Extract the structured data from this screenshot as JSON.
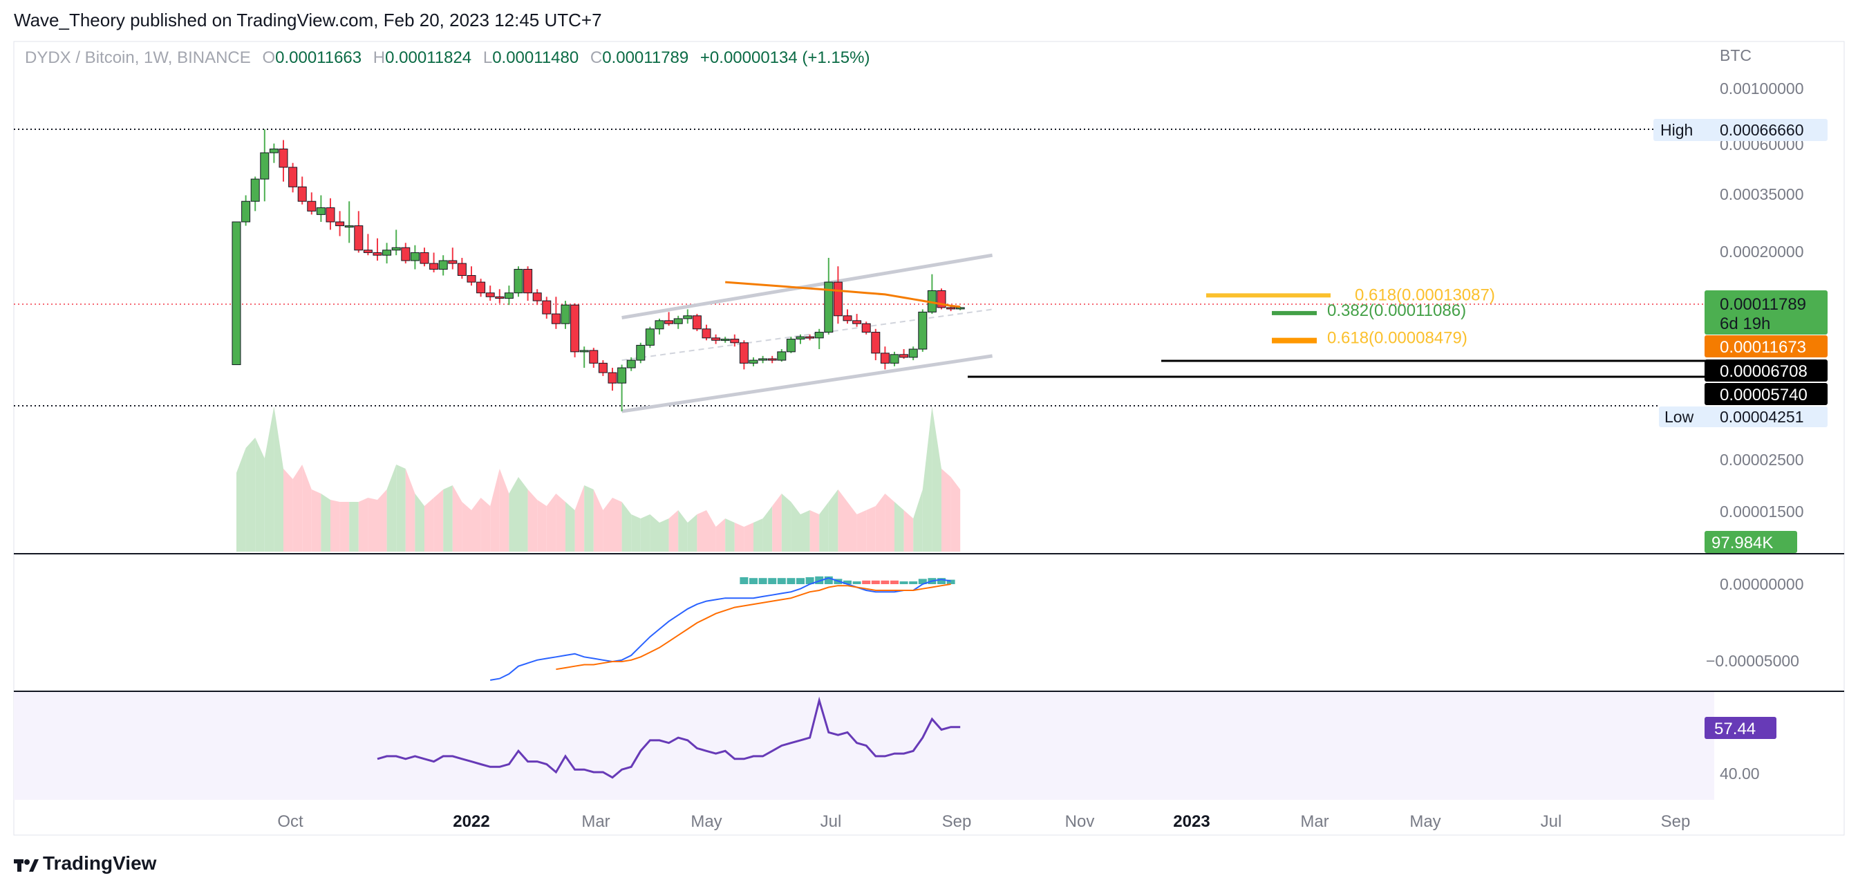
{
  "header": {
    "published": "Wave_Theory published on TradingView.com, Feb 20, 2023 12:45 UTC+7"
  },
  "legend": {
    "symbol": "DYDX / Bitcoin, 1W, BINANCE",
    "o_key": "O",
    "o_val": "0.00011663",
    "h_key": "H",
    "h_val": "0.00011824",
    "l_key": "L",
    "l_val": "0.00011480",
    "c_key": "C",
    "c_val": "0.00011789",
    "change": "+0.00000134 (+1.15%)"
  },
  "footer": {
    "brand": "TradingView",
    "logo_icon": "tradingview-logo-icon"
  },
  "colors": {
    "up": "#4caf50",
    "down": "#f23645",
    "ema": "#f57c00",
    "macd": "#2962ff",
    "signal": "#ff6d00",
    "rsi": "#673ab7",
    "fib_yellow": "#fbc02d",
    "fib_green": "#43a047",
    "vol_up": "#c8e6c9",
    "vol_down": "#ffcdd2"
  },
  "chart_data": [
    {
      "type": "candlestick",
      "title": "",
      "currency": "BTC",
      "scale": "log",
      "ylim": [
        4e-05,
        0.0012
      ],
      "x_ticks": [
        "Oct",
        "2022",
        "Mar",
        "May",
        "Jul",
        "Sep",
        "Nov",
        "2023",
        "Mar",
        "May",
        "Jul",
        "Sep"
      ],
      "y_ticks": [
        "0.00100000",
        "0.00060000",
        "0.00035000",
        "0.00020000",
        "0.00011789",
        "0.00006708",
        "0.00005740",
        "0.00004251"
      ],
      "series": [
        {
          "name": "",
          "candles": [
            [
              6.7e-05,
              0.00027,
              6.7e-05,
              0.00027
            ],
            [
              0.00027,
              0.00035,
              0.00026,
              0.00033
            ],
            [
              0.00033,
              0.00042,
              0.0003,
              0.00041
            ],
            [
              0.00041,
              0.000666,
              0.00033,
              0.00053
            ],
            [
              0.00053,
              0.00058,
              0.00048,
              0.00055
            ],
            [
              0.00055,
              0.0006,
              0.0004,
              0.00046
            ],
            [
              0.00046,
              0.00048,
              0.00036,
              0.00038
            ],
            [
              0.00038,
              0.00042,
              0.00032,
              0.00033
            ],
            [
              0.00033,
              0.00036,
              0.00029,
              0.0003
            ],
            [
              0.00029,
              0.00035,
              0.00027,
              0.00031
            ],
            [
              0.00031,
              0.00034,
              0.00025,
              0.00027
            ],
            [
              0.00027,
              0.0003,
              0.000235,
              0.00026
            ],
            [
              0.00026,
              0.00033,
              0.00022,
              0.00026
            ],
            [
              0.00026,
              0.0003,
              0.0002,
              0.000205
            ],
            [
              0.000205,
              0.00024,
              0.000195,
              0.0002
            ],
            [
              0.0002,
              0.00023,
              0.000185,
              0.000195
            ],
            [
              0.000195,
              0.00022,
              0.00018,
              0.000205
            ],
            [
              0.000205,
              0.00025,
              0.000195,
              0.00021
            ],
            [
              0.00021,
              0.00022,
              0.00018,
              0.000185
            ],
            [
              0.000185,
              0.000215,
              0.00017,
              0.0002
            ],
            [
              0.0002,
              0.00021,
              0.000175,
              0.00018
            ],
            [
              0.00018,
              0.0002,
              0.000165,
              0.00017
            ],
            [
              0.00017,
              0.000195,
              0.00016,
              0.000185
            ],
            [
              0.000185,
              0.00021,
              0.00017,
              0.00018
            ],
            [
              0.00018,
              0.00019,
              0.000155,
              0.00016
            ],
            [
              0.00016,
              0.000175,
              0.000145,
              0.00015
            ],
            [
              0.00015,
              0.000155,
              0.00013,
              0.000135
            ],
            [
              0.000135,
              0.000145,
              0.000125,
              0.00013
            ],
            [
              0.00013,
              0.00014,
              0.000122,
              0.000128
            ],
            [
              0.000128,
              0.000145,
              0.00012,
              0.000135
            ],
            [
              0.000135,
              0.000175,
              0.00013,
              0.00017
            ],
            [
              0.00017,
              0.000175,
              0.000125,
              0.000135
            ],
            [
              0.000135,
              0.00014,
              0.00012,
              0.000125
            ],
            [
              0.000125,
              0.00013,
              0.000105,
              0.00011
            ],
            [
              0.00011,
              0.00013,
              9.5e-05,
              0.0001
            ],
            [
              0.0001,
              0.000125,
              9.5e-05,
              0.00012
            ],
            [
              0.00012,
              0.000122,
              7.2e-05,
              7.6e-05
            ],
            [
              7.6e-05,
              8e-05,
              6.5e-05,
              7.7e-05
            ],
            [
              7.7e-05,
              7.9e-05,
              6.5e-05,
              6.8e-05
            ],
            [
              6.8e-05,
              7e-05,
              6e-05,
              6.2e-05
            ],
            [
              6.2e-05,
              6.5e-05,
              5.2e-05,
              5.6e-05
            ],
            [
              5.6e-05,
              6.7e-05,
              4.25e-05,
              6.5e-05
            ],
            [
              6.5e-05,
              7.2e-05,
              6.3e-05,
              7e-05
            ],
            [
              7e-05,
              8.3e-05,
              6.8e-05,
              8.1e-05
            ],
            [
              8.1e-05,
              9.7e-05,
              7.9e-05,
              9.5e-05
            ],
            [
              9.5e-05,
              0.000105,
              9e-05,
              0.000103
            ],
            [
              0.000103,
              0.000112,
              9.8e-05,
              0.0001
            ],
            [
              0.0001,
              0.000108,
              9.5e-05,
              0.000105
            ],
            [
              0.000105,
              0.000115,
              0.0001,
              0.000108
            ],
            [
              0.000108,
              0.00011,
              9.3e-05,
              9.5e-05
            ],
            [
              9.5e-05,
              9.9e-05,
              8.5e-05,
              8.7e-05
            ],
            [
              8.7e-05,
              9e-05,
              8.2e-05,
              8.5e-05
            ],
            [
              8.5e-05,
              8.8e-05,
              8.3e-05,
              8.6e-05
            ],
            [
              8.6e-05,
              9e-05,
              8e-05,
              8.3e-05
            ],
            [
              8.3e-05,
              8.5e-05,
              6.4e-05,
              6.8e-05
            ],
            [
              6.8e-05,
              7.2e-05,
              6.6e-05,
              7e-05
            ],
            [
              7e-05,
              7.3e-05,
              6.8e-05,
              7.1e-05
            ],
            [
              7.1e-05,
              7.3e-05,
              6.8e-05,
              7e-05
            ],
            [
              7e-05,
              7.8e-05,
              6.9e-05,
              7.6e-05
            ],
            [
              7.6e-05,
              8.8e-05,
              7.5e-05,
              8.6e-05
            ],
            [
              8.6e-05,
              9e-05,
              8.2e-05,
              8.8e-05
            ],
            [
              8.8e-05,
              9e-05,
              8.5e-05,
              8.7e-05
            ],
            [
              8.7e-05,
              9.5e-05,
              7.8e-05,
              9.2e-05
            ],
            [
              9.2e-05,
              0.00019,
              9e-05,
              0.00015
            ],
            [
              0.00015,
              0.000175,
              0.0001,
              0.000108
            ],
            [
              0.000108,
              0.000115,
              0.0001,
              0.000103
            ],
            [
              0.000103,
              0.00011,
              9.7e-05,
              0.0001
            ],
            [
              0.0001,
              0.000102,
              9e-05,
              9.2e-05
            ],
            [
              9.2e-05,
              9.5e-05,
              7e-05,
              7.5e-05
            ],
            [
              7.5e-05,
              8e-05,
              6.4e-05,
              6.8e-05
            ],
            [
              6.8e-05,
              7.6e-05,
              6.6e-05,
              7.4e-05
            ],
            [
              7.4e-05,
              7.8e-05,
              7.1e-05,
              7.2e-05
            ],
            [
              7.2e-05,
              8e-05,
              7e-05,
              7.8e-05
            ],
            [
              7.8e-05,
              0.000115,
              7.6e-05,
              0.000112
            ],
            [
              0.000112,
              0.000162,
              0.00011,
              0.000138
            ],
            [
              0.000138,
              0.000141,
              0.000115,
              0.000117
            ],
            [
              0.000117,
              0.00012,
              0.000113,
              0.000116
            ],
            [
              0.000116,
              0.000118,
              0.000114,
              0.000117
            ]
          ]
        }
      ],
      "ema": {
        "name": "",
        "color": "#f57c00",
        "start_index": 52,
        "values": [
          0.00015,
          0.000149,
          0.000148,
          0.000147,
          0.000146,
          0.000145,
          0.000144,
          0.000143,
          0.000142,
          0.000141,
          0.00014,
          0.000139,
          0.000138,
          0.000137,
          0.000136,
          0.000135,
          0.000134,
          0.000133,
          0.000131,
          0.000129,
          0.000127,
          0.000125,
          0.000123,
          0.000121,
          0.000119,
          0.000118
        ]
      },
      "channel": {
        "upper": [
          [
            41,
            0.000106
          ],
          [
            76,
            0.000195
          ]
        ],
        "lower": [
          [
            41,
            4.25e-05
          ],
          [
            76,
            7.3e-05
          ]
        ],
        "mid": [
          [
            41,
            7e-05
          ],
          [
            76,
            0.000115
          ]
        ]
      },
      "price_labels": [
        {
          "text": "High",
          "value": "0.00066660"
        },
        {
          "text": "Low",
          "value": "0.00004251"
        },
        {
          "text": "6d 19h",
          "value": "0.00011789"
        },
        {
          "text": "",
          "value": "0.00011673"
        },
        {
          "text": "",
          "value": "0.00006708"
        },
        {
          "text": "",
          "value": "0.00005740"
        }
      ],
      "fib_labels": [
        {
          "text": "0.618(0.00013087)",
          "value": 0.00013087
        },
        {
          "text": "0.382(0.00011086)",
          "value": 0.00011086
        },
        {
          "text": "0.618(0.00008479)",
          "value": 8.479e-05
        }
      ],
      "volume": {
        "last_label": "97.984K",
        "y_ticks": [
          "0.00002500",
          "0.00001500"
        ],
        "values": [
          38,
          50,
          55,
          45,
          70,
          40,
          35,
          42,
          30,
          28,
          25,
          24,
          24,
          24,
          26,
          25,
          30,
          42,
          40,
          28,
          22,
          26,
          30,
          32,
          24,
          20,
          26,
          22,
          40,
          28,
          36,
          30,
          25,
          22,
          28,
          24,
          20,
          32,
          30,
          20,
          26,
          24,
          18,
          16,
          18,
          14,
          16,
          20,
          14,
          18,
          20,
          12,
          16,
          14,
          12,
          14,
          16,
          22,
          28,
          24,
          18,
          20,
          18,
          24,
          30,
          24,
          18,
          20,
          22,
          28,
          24,
          20,
          16,
          30,
          70,
          40,
          36,
          30
        ]
      },
      "macd": {
        "y_ticks": [
          "0.00000000",
          "−0.00005000"
        ],
        "start_index": 27,
        "macd": [
          -6.2e-05,
          -6.1e-05,
          -5.8e-05,
          -5.3e-05,
          -5.1e-05,
          -4.9e-05,
          -4.8e-05,
          -4.7e-05,
          -4.6e-05,
          -4.5e-05,
          -4.7e-05,
          -4.8e-05,
          -4.9e-05,
          -5e-05,
          -4.9e-05,
          -4.6e-05,
          -4e-05,
          -3.4e-05,
          -2.9e-05,
          -2.4e-05,
          -2e-05,
          -1.6e-05,
          -1.3e-05,
          -1.1e-05,
          -1e-05,
          -9e-06,
          -9e-06,
          -9e-06,
          -9e-06,
          -8e-06,
          -7e-06,
          -6e-06,
          -5e-06,
          -3e-06,
          0.0,
          2e-06,
          4e-06,
          2e-06,
          0.0,
          -2e-06,
          -4e-06,
          -5e-06,
          -5e-06,
          -5e-06,
          -4e-06,
          -4e-06,
          0.0,
          2e-06,
          3e-06,
          2e-06
        ],
        "signal": [
          null,
          null,
          null,
          null,
          null,
          null,
          null,
          -5.5e-05,
          -5.4e-05,
          -5.3e-05,
          -5.2e-05,
          -5.2e-05,
          -5.1e-05,
          -5e-05,
          -5e-05,
          -4.9e-05,
          -4.7e-05,
          -4.4e-05,
          -4.1e-05,
          -3.7e-05,
          -3.3e-05,
          -2.9e-05,
          -2.5e-05,
          -2.2e-05,
          -1.9e-05,
          -1.7e-05,
          -1.5e-05,
          -1.4e-05,
          -1.3e-05,
          -1.2e-05,
          -1.1e-05,
          -1e-05,
          -9e-06,
          -7e-06,
          -5e-06,
          -4e-06,
          -2e-06,
          -1e-06,
          -1e-06,
          -2e-06,
          -3e-06,
          -4e-06,
          -4e-06,
          -4e-06,
          -4e-06,
          -4e-06,
          -3e-06,
          -2e-06,
          -1e-06,
          0.0
        ]
      },
      "rsi": {
        "last_label": "57.44",
        "y_ticks": [
          "40.00"
        ],
        "start_index": 15,
        "values": [
          45,
          46,
          46,
          45,
          46,
          45,
          44,
          46,
          46,
          45,
          44,
          43,
          42,
          42,
          43,
          48,
          44,
          44,
          43,
          40,
          46,
          41,
          41,
          40,
          40,
          38,
          41,
          42,
          48,
          52,
          52,
          51,
          53,
          52,
          49,
          48,
          47,
          48,
          45,
          45,
          46,
          46,
          48,
          50,
          51,
          52,
          53,
          67,
          55,
          54,
          55,
          51,
          50,
          46,
          46,
          47,
          47,
          48,
          53,
          60,
          56,
          57,
          57
        ]
      }
    }
  ]
}
